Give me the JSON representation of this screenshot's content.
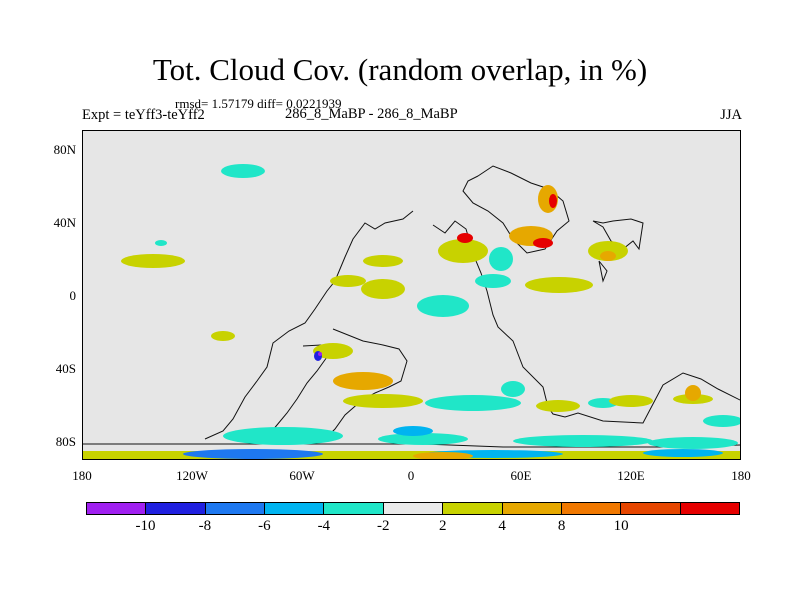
{
  "title": "Tot. Cloud Cov. (random overlap, in %)",
  "stats": "rmsd= 1.57179 diff= 0.0221939",
  "experiment": "Expt = teYff3-teYff2",
  "center_label": "286_8_MaBP - 286_8_MaBP",
  "season": "JJA",
  "y_ticks": [
    "80N",
    "40N",
    "0",
    "40S",
    "80S"
  ],
  "x_ticks": [
    "180",
    "120W",
    "60W",
    "0",
    "60E",
    "120E",
    "180"
  ],
  "colorbar": {
    "colors": [
      "#a020f0",
      "#2020e0",
      "#1e78f0",
      "#00b4f0",
      "#20e6c8",
      "#eaeaea",
      "#c8d200",
      "#e6a800",
      "#f07800",
      "#e64600",
      "#e60000"
    ],
    "labels": [
      "-10",
      "-8",
      "-6",
      "-4",
      "-2",
      "2",
      "4",
      "8",
      "10"
    ]
  }
}
